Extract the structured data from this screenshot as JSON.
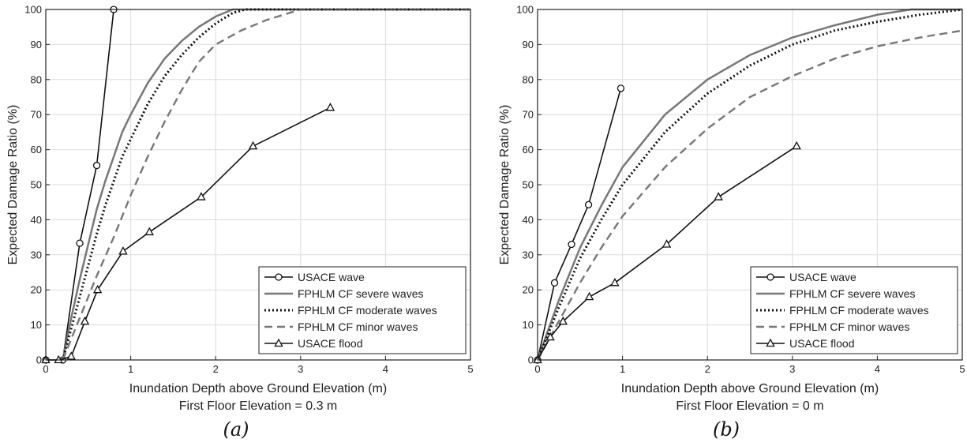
{
  "figure": {
    "captions": [
      "(a)",
      "(b)"
    ]
  },
  "chart_data": [
    {
      "type": "line",
      "xlabel": "Inundation Depth above Ground Elevation (m)",
      "subtitle": "First Floor Elevation = 0.3 m",
      "ylabel": "Expected Damage Ratio (%)",
      "xlim": [
        0,
        5
      ],
      "ylim": [
        0,
        100
      ],
      "xticks": [
        "0",
        "1",
        "2",
        "3",
        "4",
        "5"
      ],
      "yticks": [
        "0",
        "10",
        "20",
        "30",
        "40",
        "50",
        "60",
        "70",
        "80",
        "90",
        "100"
      ],
      "grid": true,
      "legend_position": "bottom-right",
      "series": [
        {
          "name": "USACE wave",
          "style": "solid-circle",
          "color": "#111111",
          "points": [
            [
              0,
              0
            ],
            [
              0.2,
              0
            ],
            [
              0.4,
              33.3
            ],
            [
              0.6,
              55.5
            ],
            [
              0.8,
              100
            ]
          ]
        },
        {
          "name": "FPHLM CF severe waves",
          "style": "solid",
          "color": "#777777",
          "points": [
            [
              0.2,
              0
            ],
            [
              0.3,
              12
            ],
            [
              0.4,
              23
            ],
            [
              0.5,
              33
            ],
            [
              0.6,
              43
            ],
            [
              0.7,
              51
            ],
            [
              0.8,
              58
            ],
            [
              0.9,
              65
            ],
            [
              1.0,
              70
            ],
            [
              1.2,
              79
            ],
            [
              1.4,
              86
            ],
            [
              1.6,
              91
            ],
            [
              1.8,
              95
            ],
            [
              2.0,
              98
            ],
            [
              2.2,
              100
            ],
            [
              5,
              100
            ]
          ]
        },
        {
          "name": "FPHLM CF moderate waves",
          "style": "dotted",
          "color": "#111111",
          "points": [
            [
              0.2,
              0
            ],
            [
              0.3,
              9
            ],
            [
              0.4,
              18
            ],
            [
              0.5,
              27
            ],
            [
              0.6,
              36
            ],
            [
              0.7,
              44
            ],
            [
              0.8,
              51
            ],
            [
              0.9,
              58
            ],
            [
              1.0,
              63
            ],
            [
              1.2,
              73
            ],
            [
              1.4,
              81
            ],
            [
              1.6,
              87
            ],
            [
              1.8,
              92
            ],
            [
              2.0,
              96
            ],
            [
              2.2,
              99
            ],
            [
              2.35,
              100
            ],
            [
              5,
              100
            ]
          ]
        },
        {
          "name": "FPHLM CF minor waves",
          "style": "dashed",
          "color": "#777777",
          "points": [
            [
              0.2,
              0
            ],
            [
              0.3,
              6
            ],
            [
              0.4,
              12
            ],
            [
              0.5,
              18
            ],
            [
              0.6,
              24
            ],
            [
              0.8,
              35
            ],
            [
              1.0,
              47
            ],
            [
              1.2,
              58
            ],
            [
              1.4,
              68
            ],
            [
              1.6,
              77
            ],
            [
              1.8,
              85
            ],
            [
              2.0,
              90
            ],
            [
              2.3,
              94
            ],
            [
              2.6,
              97
            ],
            [
              3.0,
              100
            ],
            [
              5,
              100
            ]
          ]
        },
        {
          "name": "USACE flood",
          "style": "solid-triangle",
          "color": "#111111",
          "points": [
            [
              0,
              0
            ],
            [
              0.15,
              0
            ],
            [
              0.3,
              1
            ],
            [
              0.46,
              11
            ],
            [
              0.61,
              20
            ],
            [
              0.91,
              31
            ],
            [
              1.22,
              36.5
            ],
            [
              1.83,
              46.5
            ],
            [
              2.44,
              61
            ],
            [
              3.35,
              72
            ]
          ]
        }
      ]
    },
    {
      "type": "line",
      "xlabel": "Inundation Depth above Ground Elevation (m)",
      "subtitle": "First Floor Elevation = 0 m",
      "ylabel": "Expected Damage Ratio (%)",
      "xlim": [
        0,
        5
      ],
      "ylim": [
        0,
        100
      ],
      "xticks": [
        "0",
        "1",
        "2",
        "3",
        "4",
        "5"
      ],
      "yticks": [
        "0",
        "10",
        "20",
        "30",
        "40",
        "50",
        "60",
        "70",
        "80",
        "90",
        "100"
      ],
      "grid": true,
      "legend_position": "bottom-right",
      "series": [
        {
          "name": "USACE wave",
          "style": "solid-circle",
          "color": "#111111",
          "points": [
            [
              0,
              0
            ],
            [
              0.2,
              22
            ],
            [
              0.4,
              33
            ],
            [
              0.6,
              44.3
            ],
            [
              0.98,
              77.5
            ]
          ]
        },
        {
          "name": "FPHLM CF severe waves",
          "style": "solid",
          "color": "#777777",
          "points": [
            [
              0,
              0
            ],
            [
              0.25,
              17
            ],
            [
              0.5,
              32
            ],
            [
              0.75,
              44
            ],
            [
              1.0,
              55
            ],
            [
              1.5,
              70
            ],
            [
              2.0,
              80
            ],
            [
              2.5,
              87
            ],
            [
              3.0,
              92
            ],
            [
              3.5,
              95.5
            ],
            [
              4.0,
              98.5
            ],
            [
              4.4,
              100
            ],
            [
              5,
              100
            ]
          ]
        },
        {
          "name": "FPHLM CF moderate waves",
          "style": "dotted",
          "color": "#111111",
          "points": [
            [
              0,
              0
            ],
            [
              0.25,
              15
            ],
            [
              0.5,
              29
            ],
            [
              0.75,
              40
            ],
            [
              1.0,
              50
            ],
            [
              1.5,
              65
            ],
            [
              2.0,
              76
            ],
            [
              2.5,
              84
            ],
            [
              3.0,
              90
            ],
            [
              3.5,
              94
            ],
            [
              4.0,
              96.5
            ],
            [
              4.5,
              98.5
            ],
            [
              5,
              100
            ]
          ]
        },
        {
          "name": "FPHLM CF minor waves",
          "style": "dashed",
          "color": "#777777",
          "points": [
            [
              0,
              0
            ],
            [
              0.25,
              11
            ],
            [
              0.5,
              22
            ],
            [
              0.75,
              32
            ],
            [
              1.0,
              41
            ],
            [
              1.5,
              55
            ],
            [
              2.0,
              66
            ],
            [
              2.5,
              75
            ],
            [
              3.0,
              81
            ],
            [
              3.5,
              86
            ],
            [
              4.0,
              89.5
            ],
            [
              4.5,
              92
            ],
            [
              5,
              94
            ]
          ]
        },
        {
          "name": "USACE flood",
          "style": "solid-triangle",
          "color": "#111111",
          "points": [
            [
              0,
              0
            ],
            [
              0.15,
              6.5
            ],
            [
              0.3,
              11
            ],
            [
              0.61,
              18
            ],
            [
              0.91,
              22
            ],
            [
              1.52,
              33
            ],
            [
              2.13,
              46.5
            ],
            [
              3.05,
              61
            ]
          ]
        }
      ]
    }
  ]
}
